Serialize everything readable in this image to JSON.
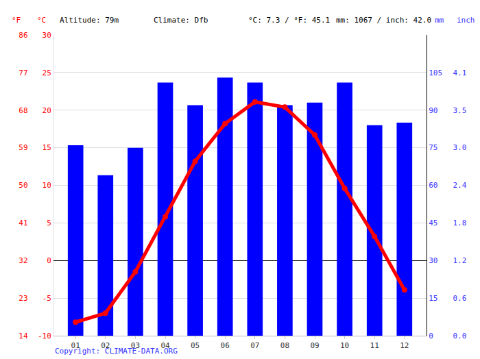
{
  "chart_data": {
    "type": "bar",
    "categories": [
      "01",
      "02",
      "03",
      "04",
      "05",
      "06",
      "07",
      "08",
      "09",
      "10",
      "11",
      "12"
    ],
    "series": [
      {
        "name": "mm",
        "type": "bar",
        "axis": "y2",
        "color": "#0000ff",
        "values": [
          76,
          64,
          75,
          101,
          92,
          103,
          101,
          92,
          93,
          101,
          84,
          85
        ]
      },
      {
        "name": "°C",
        "type": "line",
        "color": "#ff0000",
        "marker": "circle",
        "line_style": "solid",
        "values": [
          -8.2,
          -7.0,
          -1.5,
          5.8,
          13.2,
          18.2,
          21.1,
          20.4,
          16.7,
          9.6,
          3.2,
          -3.9
        ]
      }
    ],
    "ylabel": "°C",
    "ylim": [
      -10,
      30
    ],
    "yticks": [
      -10,
      -5,
      0,
      5,
      10,
      15,
      20,
      25,
      30
    ],
    "y2label": "mm",
    "y2lim": [
      0,
      120
    ],
    "y2ticks": [
      0,
      15,
      30,
      45,
      60,
      75,
      90,
      105
    ],
    "y3label": "°F",
    "y3lim": [
      14,
      86
    ],
    "y3ticks": [
      14,
      23,
      32,
      41,
      50,
      59,
      68,
      77,
      86
    ],
    "y4label": "inch",
    "y4lim": [
      0,
      4.72
    ],
    "y4ticks": [
      {
        "value": 0,
        "label": "0.0"
      },
      {
        "value": 0.59,
        "label": "0.6"
      },
      {
        "value": 1.18,
        "label": "1.2"
      },
      {
        "value": 1.77,
        "label": "1.8"
      },
      {
        "value": 2.36,
        "label": "2.4"
      },
      {
        "value": 2.95,
        "label": "3.0"
      },
      {
        "value": 3.54,
        "label": "3.5"
      },
      {
        "value": 4.13,
        "label": "4.1"
      }
    ],
    "grid": true,
    "annotations": [
      "Altitude: 79m",
      "Climate: Dfb",
      "°C: 7.3 / °F: 45.1",
      "mm: 1067 / inch: 42.0"
    ],
    "source": "Copyright: CLIMATE-DATA.ORG"
  }
}
